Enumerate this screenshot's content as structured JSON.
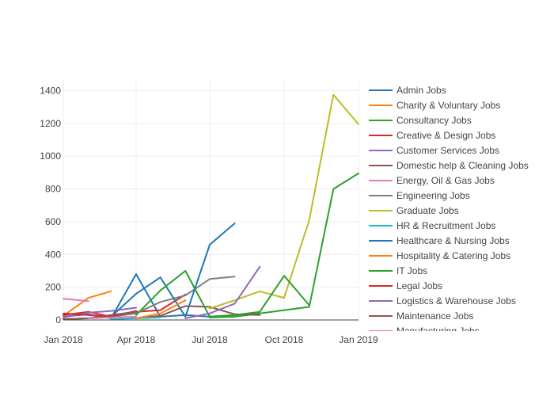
{
  "chart_data": {
    "type": "line",
    "title": "",
    "xlabel": "",
    "ylabel": "",
    "x_ticks": [
      {
        "date": "2018-01-01",
        "label": "Jan 2018"
      },
      {
        "date": "2018-04-01",
        "label": "Apr 2018"
      },
      {
        "date": "2018-07-01",
        "label": "Jul 2018"
      },
      {
        "date": "2018-10-01",
        "label": "Oct 2018"
      },
      {
        "date": "2019-01-01",
        "label": "Jan 2019"
      }
    ],
    "xlim": [
      "2018-01-01",
      "2019-01-01"
    ],
    "y_ticks": [
      0,
      200,
      400,
      600,
      800,
      1000,
      1200,
      1400
    ],
    "ylim": [
      0,
      1470
    ],
    "grid": true,
    "legend_position": "right",
    "series": [
      {
        "name": "Admin Jobs",
        "color": "#1f77b4",
        "points": [
          [
            "2018-01-01",
            20
          ],
          [
            "2018-02-01",
            35
          ],
          [
            "2018-03-01",
            10
          ],
          [
            "2018-04-01",
            280
          ],
          [
            "2018-05-01",
            20
          ],
          [
            "2018-06-01",
            30
          ],
          [
            "2018-07-01",
            20
          ],
          [
            "2018-08-01",
            30
          ],
          [
            "2018-09-01",
            40
          ]
        ]
      },
      {
        "name": "Charity & Voluntary Jobs",
        "color": "#ff7f0e",
        "points": [
          [
            "2018-01-01",
            25
          ],
          [
            "2018-02-01",
            135
          ],
          [
            "2018-03-01",
            175
          ]
        ]
      },
      {
        "name": "Consultancy Jobs",
        "color": "#2ca02c",
        "points": [
          [
            "2018-07-01",
            15
          ],
          [
            "2018-08-01",
            20
          ],
          [
            "2018-09-01",
            40
          ],
          [
            "2018-10-01",
            60
          ],
          [
            "2018-11-01",
            80
          ],
          [
            "2018-12-01",
            800
          ],
          [
            "2019-01-01",
            895
          ]
        ]
      },
      {
        "name": "Creative & Design Jobs",
        "color": "#d62728",
        "points": [
          [
            "2018-01-01",
            30
          ],
          [
            "2018-02-01",
            50
          ],
          [
            "2018-03-01",
            20
          ],
          [
            "2018-04-01",
            50
          ],
          [
            "2018-05-01",
            60
          ],
          [
            "2018-06-01",
            155
          ]
        ]
      },
      {
        "name": "Customer Services Jobs",
        "color": "#9467bd",
        "points": [
          [
            "2018-01-01",
            15
          ],
          [
            "2018-02-01",
            45
          ],
          [
            "2018-03-01",
            55
          ],
          [
            "2018-04-01",
            75
          ]
        ]
      },
      {
        "name": "Domestic help & Cleaning Jobs",
        "color": "#8c564b",
        "points": [
          [
            "2018-04-01",
            10
          ],
          [
            "2018-05-01",
            25
          ],
          [
            "2018-06-01",
            85
          ],
          [
            "2018-07-01",
            80
          ],
          [
            "2018-08-01",
            35
          ],
          [
            "2018-09-01",
            30
          ]
        ]
      },
      {
        "name": "Energy, Oil & Gas Jobs",
        "color": "#e377c2",
        "points": [
          [
            "2018-01-01",
            130
          ],
          [
            "2018-02-01",
            115
          ]
        ]
      },
      {
        "name": "Engineering Jobs",
        "color": "#7f7f7f",
        "points": [
          [
            "2018-01-01",
            5
          ],
          [
            "2018-02-01",
            10
          ],
          [
            "2018-03-01",
            20
          ],
          [
            "2018-04-01",
            40
          ],
          [
            "2018-05-01",
            110
          ],
          [
            "2018-06-01",
            150
          ],
          [
            "2018-07-01",
            250
          ],
          [
            "2018-08-01",
            265
          ]
        ]
      },
      {
        "name": "Graduate Jobs",
        "color": "#bcbd22",
        "points": [
          [
            "2018-07-01",
            70
          ],
          [
            "2018-08-01",
            120
          ],
          [
            "2018-09-01",
            175
          ],
          [
            "2018-10-01",
            135
          ],
          [
            "2018-11-01",
            610
          ],
          [
            "2018-12-01",
            1375
          ],
          [
            "2019-01-01",
            1195
          ]
        ]
      },
      {
        "name": "HR & Recruitment Jobs",
        "color": "#17becf",
        "points": [
          [
            "2018-03-01",
            5
          ],
          [
            "2018-04-01",
            10
          ],
          [
            "2018-05-01",
            15
          ]
        ]
      },
      {
        "name": "Healthcare & Nursing Jobs",
        "color": "#1f77b4",
        "points": [
          [
            "2018-03-01",
            20
          ],
          [
            "2018-04-01",
            160
          ],
          [
            "2018-05-01",
            260
          ],
          [
            "2018-06-01",
            20
          ],
          [
            "2018-07-01",
            460
          ],
          [
            "2018-08-01",
            590
          ]
        ]
      },
      {
        "name": "Hospitality & Catering Jobs",
        "color": "#ff7f0e",
        "points": [
          [
            "2018-04-01",
            10
          ],
          [
            "2018-05-01",
            40
          ],
          [
            "2018-06-01",
            120
          ]
        ]
      },
      {
        "name": "IT Jobs",
        "color": "#2ca02c",
        "points": [
          [
            "2018-04-01",
            30
          ],
          [
            "2018-05-01",
            180
          ],
          [
            "2018-06-01",
            300
          ],
          [
            "2018-07-01",
            20
          ],
          [
            "2018-08-01",
            30
          ],
          [
            "2018-09-01",
            50
          ],
          [
            "2018-10-01",
            270
          ],
          [
            "2018-11-01",
            90
          ]
        ]
      },
      {
        "name": "Legal Jobs",
        "color": "#d62728",
        "points": [
          [
            "2018-01-01",
            40
          ],
          [
            "2018-02-01",
            30
          ],
          [
            "2018-03-01",
            20
          ],
          [
            "2018-04-01",
            55
          ]
        ]
      },
      {
        "name": "Logistics & Warehouse Jobs",
        "color": "#9467bd",
        "points": [
          [
            "2018-06-01",
            10
          ],
          [
            "2018-07-01",
            40
          ],
          [
            "2018-08-01",
            100
          ],
          [
            "2018-09-01",
            325
          ]
        ]
      },
      {
        "name": "Maintenance Jobs",
        "color": "#8c564b",
        "points": [
          [
            "2018-01-01",
            5
          ],
          [
            "2018-02-01",
            10
          ],
          [
            "2018-03-01",
            30
          ],
          [
            "2018-04-01",
            50
          ]
        ]
      },
      {
        "name": "Manufacturing Jobs",
        "color": "#e377c2",
        "points": [
          [
            "2018-02-01",
            10
          ],
          [
            "2018-03-01",
            15
          ],
          [
            "2018-04-01",
            20
          ]
        ]
      }
    ]
  }
}
